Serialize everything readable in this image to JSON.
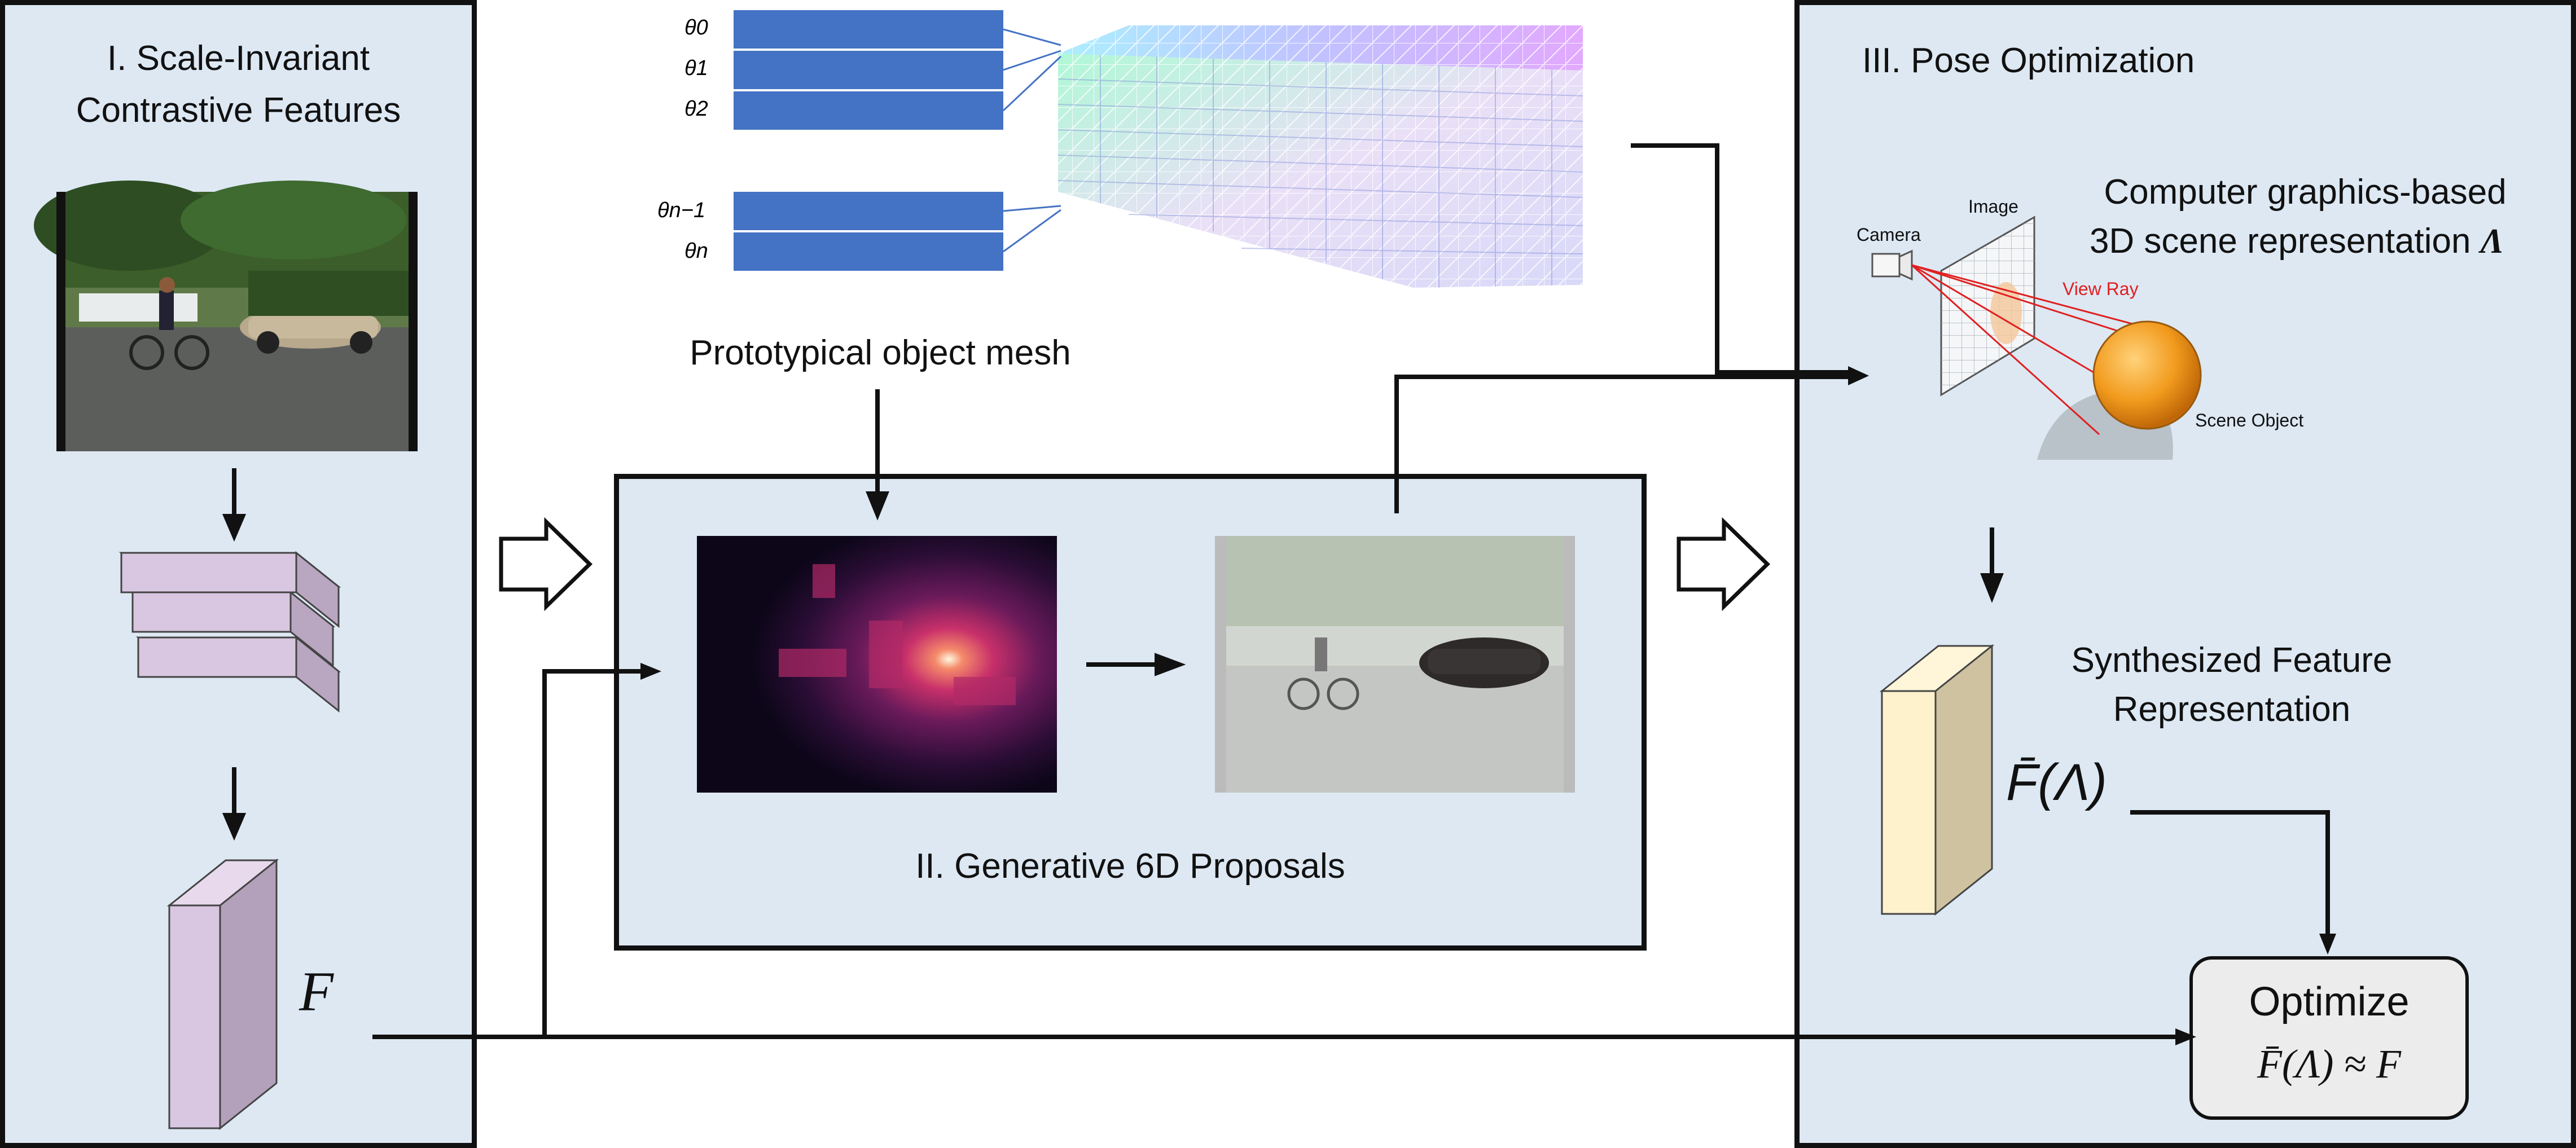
{
  "panel1": {
    "title_line1": "I. Scale-Invariant",
    "title_line2": "Contrastive Features",
    "feature_symbol": "F"
  },
  "panel2": {
    "title": "II. Generative 6D Proposals",
    "mesh_label": "Prototypical object mesh"
  },
  "panel3": {
    "title": "III. Pose Optimization",
    "graphics_line1": "Computer graphics-based",
    "graphics_line2": "3D scene representation",
    "graphics_symbol": "Λ",
    "camera_label": "Camera",
    "image_label": "Image",
    "ray_label": "View Ray",
    "object_label": "Scene Object",
    "synth_line1": "Synthesized Feature",
    "synth_line2": "Representation",
    "synth_symbol": "F̄(Λ)"
  },
  "optimize": {
    "title": "Optimize",
    "equation": "F̄(Λ) ≈ F"
  },
  "mesh_params": [
    "θ0",
    "θ1",
    "θ2",
    "θn−1",
    "θn"
  ],
  "colors": {
    "panel_bg": "#dde8f3",
    "param_bar": "#4472c4",
    "encoder_block": "#d9c6e0",
    "feature_block": "#fdf2cc",
    "ray": "#e02020",
    "sphere": "#f29b1e",
    "optimize_bg": "#ececec"
  }
}
